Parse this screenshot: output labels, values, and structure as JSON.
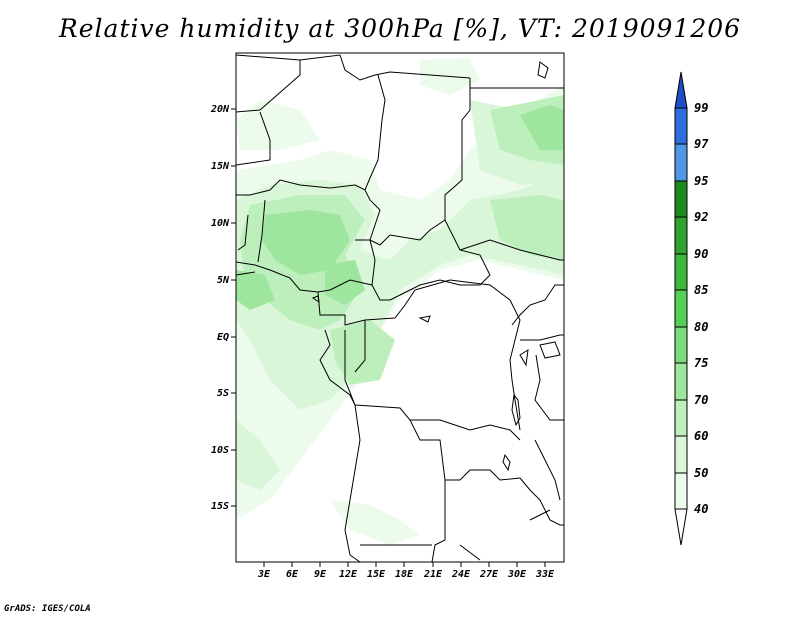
{
  "title": "Relative humidity at 300hPa [%], VT: 2019091206",
  "footer": "GrADS: IGES/COLA",
  "map": {
    "lat_labels": [
      "20N",
      "15N",
      "10N",
      "5N",
      "EQ",
      "5S",
      "10S",
      "15S"
    ],
    "lon_labels": [
      "3E",
      "6E",
      "9E",
      "12E",
      "15E",
      "18E",
      "21E",
      "24E",
      "27E",
      "30E",
      "33E"
    ]
  },
  "colorbar": {
    "labels": [
      "99",
      "97",
      "95",
      "92",
      "90",
      "85",
      "80",
      "75",
      "70",
      "60",
      "50",
      "40"
    ],
    "colors": {
      "top_arrow": "#1E4EC8",
      "c97_99": "#2E6FE0",
      "c95_97": "#4F98E8",
      "c92_95": "#1E8A1E",
      "c90_92": "#2FA22F",
      "c85_90": "#3CB83C",
      "c80_85": "#55CF55",
      "c75_80": "#7CDB7C",
      "c70_75": "#9EE59E",
      "c60_70": "#BDEFBD",
      "c50_60": "#D9F6D9",
      "c40_50": "#EDFBED",
      "bottom_arrow": "#FFFFFF"
    }
  }
}
